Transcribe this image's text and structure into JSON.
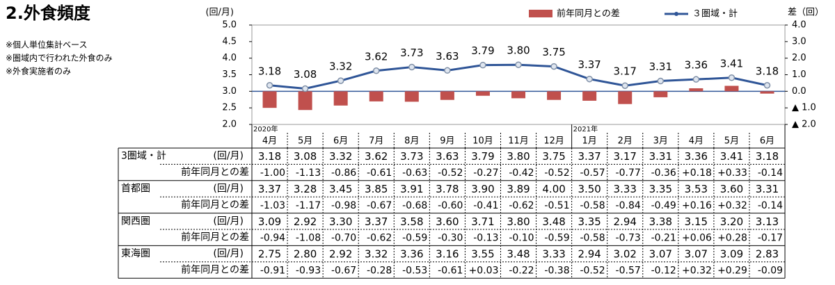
{
  "chart_data": {
    "type": "bar_line",
    "title": "2.外食頻度",
    "notes": [
      "※個人単位集計ベース",
      "※圏域内で行われた外食のみ",
      "※外食実施者のみ"
    ],
    "y_label": "(回/月)",
    "y2_label": "差（回）",
    "categories": [
      "4月",
      "5月",
      "6月",
      "7月",
      "8月",
      "9月",
      "10月",
      "11月",
      "12月",
      "1月",
      "2月",
      "3月",
      "4月",
      "5月",
      "6月"
    ],
    "period_labels": [
      "2020年",
      null,
      null,
      null,
      null,
      null,
      null,
      null,
      null,
      "2021年",
      null,
      null,
      null,
      null,
      null
    ],
    "ylim": [
      2,
      5
    ],
    "yticks": [
      {
        "value": 2,
        "label": "2.0"
      },
      {
        "value": 2.5,
        "label": "2.5"
      },
      {
        "value": 3,
        "label": "3.0"
      },
      {
        "value": 3.5,
        "label": "3.5"
      },
      {
        "value": 4,
        "label": "4.0"
      },
      {
        "value": 4.5,
        "label": "4.5"
      },
      {
        "value": 5,
        "label": "5.0"
      }
    ],
    "y2lim": [
      -2,
      4
    ],
    "y2ticks": [
      {
        "value": 4,
        "label": "4.0"
      },
      {
        "value": 3,
        "label": "3.0"
      },
      {
        "value": 2,
        "label": "2.0"
      },
      {
        "value": 1,
        "label": "1.0"
      },
      {
        "value": 0,
        "label": "0.0"
      },
      {
        "value": -1,
        "label": "▲ 1.0"
      },
      {
        "value": -2,
        "label": "▲ 2.0"
      }
    ],
    "series": [
      {
        "name": "前年同月との差",
        "type": "bar",
        "axis": "y2",
        "color": "#c0504d",
        "values": [
          -1.0,
          -1.13,
          -0.86,
          -0.61,
          -0.63,
          -0.52,
          -0.27,
          -0.42,
          -0.52,
          -0.57,
          -0.77,
          -0.36,
          0.18,
          0.33,
          -0.14
        ]
      },
      {
        "name": "３圏域・計",
        "type": "line",
        "color": "#2f5597",
        "values": [
          3.18,
          3.08,
          3.32,
          3.62,
          3.73,
          3.63,
          3.79,
          3.8,
          3.75,
          3.37,
          3.17,
          3.31,
          3.36,
          3.41,
          3.18
        ],
        "value_labels": [
          "3.18",
          "3.08",
          "3.32",
          "3.62",
          "3.73",
          "3.63",
          "3.79",
          "3.80",
          "3.75",
          "3.37",
          "3.17",
          "3.31",
          "3.36",
          "3.41",
          "3.18"
        ]
      }
    ]
  },
  "table": {
    "rows": [
      {
        "name": "3圏域・計",
        "unit": "(回/月)",
        "diff_label": "前年同月との差",
        "values": [
          "3.18",
          "3.08",
          "3.32",
          "3.62",
          "3.73",
          "3.63",
          "3.79",
          "3.80",
          "3.75",
          "3.37",
          "3.17",
          "3.31",
          "3.36",
          "3.41",
          "3.18"
        ],
        "diffs": [
          "-1.00",
          "-1.13",
          "-0.86",
          "-0.61",
          "-0.63",
          "-0.52",
          "-0.27",
          "-0.42",
          "-0.52",
          "-0.57",
          "-0.77",
          "-0.36",
          "+0.18",
          "+0.33",
          "-0.14"
        ]
      },
      {
        "name": "首都圏",
        "unit": "(回/月)",
        "diff_label": "前年同月との差",
        "values": [
          "3.37",
          "3.28",
          "3.45",
          "3.85",
          "3.91",
          "3.78",
          "3.90",
          "3.89",
          "4.00",
          "3.50",
          "3.33",
          "3.35",
          "3.53",
          "3.60",
          "3.31"
        ],
        "diffs": [
          "-1.03",
          "-1.17",
          "-0.98",
          "-0.67",
          "-0.68",
          "-0.60",
          "-0.41",
          "-0.62",
          "-0.51",
          "-0.58",
          "-0.84",
          "-0.49",
          "+0.16",
          "+0.32",
          "-0.14"
        ]
      },
      {
        "name": "関西圏",
        "unit": "(回/月)",
        "diff_label": "前年同月との差",
        "values": [
          "3.09",
          "2.92",
          "3.30",
          "3.37",
          "3.58",
          "3.60",
          "3.71",
          "3.80",
          "3.48",
          "3.35",
          "2.94",
          "3.38",
          "3.15",
          "3.20",
          "3.13"
        ],
        "diffs": [
          "-0.94",
          "-1.08",
          "-0.70",
          "-0.62",
          "-0.59",
          "-0.30",
          "-0.13",
          "-0.10",
          "-0.59",
          "-0.58",
          "-0.73",
          "-0.21",
          "+0.06",
          "+0.28",
          "-0.17"
        ]
      },
      {
        "name": "東海圏",
        "unit": "(回/月)",
        "diff_label": "前年同月との差",
        "values": [
          "2.75",
          "2.80",
          "2.92",
          "3.32",
          "3.36",
          "3.16",
          "3.55",
          "3.48",
          "3.33",
          "2.94",
          "3.02",
          "3.07",
          "3.07",
          "3.09",
          "2.83"
        ],
        "diffs": [
          "-0.91",
          "-0.93",
          "-0.67",
          "-0.28",
          "-0.53",
          "-0.61",
          "+0.03",
          "-0.22",
          "-0.38",
          "-0.52",
          "-0.57",
          "-0.12",
          "+0.32",
          "+0.29",
          "-0.09"
        ]
      }
    ]
  }
}
